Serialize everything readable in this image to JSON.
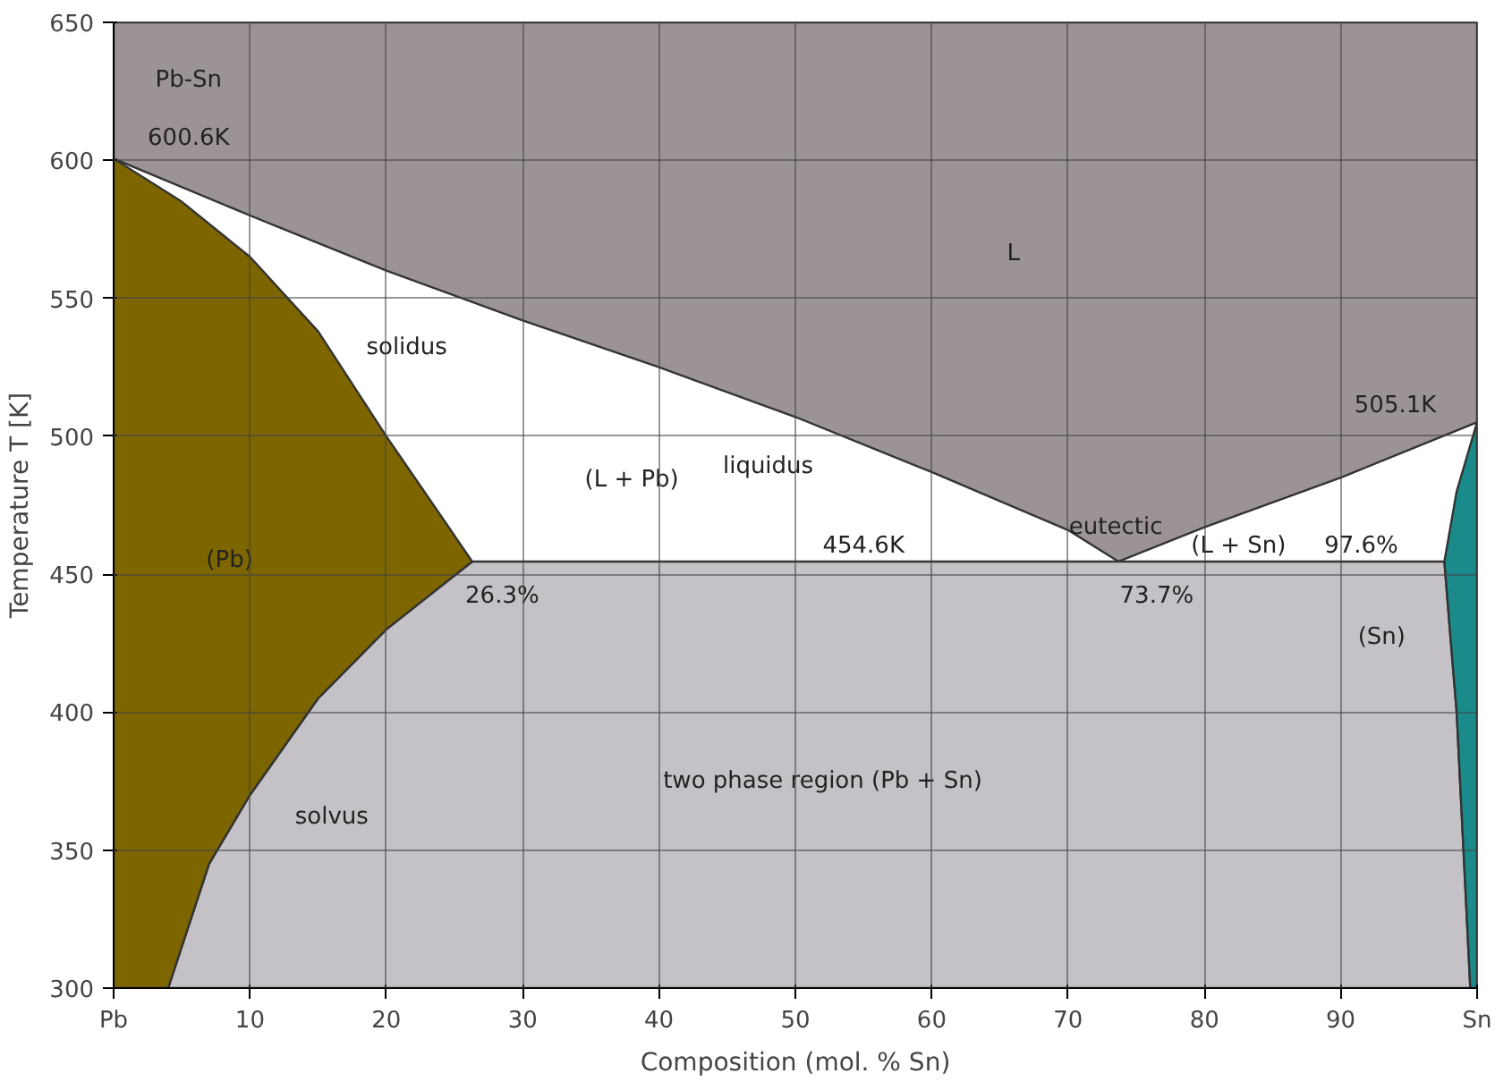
{
  "chart_data": {
    "type": "area",
    "xlabel": "Composition (mol. % Sn)",
    "ylabel": "Temperature T [K]",
    "xlim": [
      0,
      100
    ],
    "ylim": [
      300,
      650
    ],
    "xticks": [
      {
        "value": 0,
        "label": "Pb"
      },
      10,
      20,
      30,
      40,
      50,
      60,
      70,
      80,
      90,
      {
        "value": 100,
        "label": "Sn"
      }
    ],
    "yticks": [
      300,
      350,
      400,
      450,
      500,
      550,
      600,
      650
    ],
    "grid": true,
    "series": [
      {
        "color": "#9b9398",
        "x": [
          0,
          10,
          20,
          30,
          40,
          50,
          60,
          70,
          73.7,
          80,
          90,
          100,
          100,
          0
        ],
        "values": [
          600.6,
          580,
          560,
          542,
          525,
          507,
          487,
          466,
          454.6,
          467,
          485,
          505.1,
          650,
          650
        ]
      },
      {
        "color": "#c5c2c7",
        "x": [
          26.3,
          97.6,
          98,
          98.5,
          99,
          99.5,
          4,
          7,
          10,
          15,
          20
        ],
        "values": [
          454.6,
          454.6,
          430,
          400,
          350,
          300,
          300,
          345,
          370,
          405,
          430
        ]
      },
      {
        "color": "#7d6500",
        "x": [
          0,
          5,
          10,
          15,
          20,
          26.3,
          20,
          15,
          10,
          7,
          4,
          0
        ],
        "values": [
          600.6,
          585,
          565,
          538,
          500,
          454.6,
          430,
          405,
          370,
          345,
          300,
          300
        ]
      },
      {
        "color": "#1a8a8a",
        "x": [
          100,
          98.5,
          97.6,
          98,
          98.5,
          99,
          99.5,
          100
        ],
        "values": [
          505.1,
          480,
          454.6,
          430,
          400,
          350,
          300,
          300
        ]
      }
    ],
    "annotations": [
      "Pb-Sn",
      "600.6K",
      "L",
      "solidus",
      "505.1K",
      "(L + Pb)",
      "liquidus",
      "eutectic",
      "454.6K",
      "(L + Sn)",
      "97.6%",
      "(Pb)",
      "26.3%",
      "73.7%",
      "(Sn)",
      "two phase region (Pb + Sn)",
      "solvus"
    ]
  }
}
